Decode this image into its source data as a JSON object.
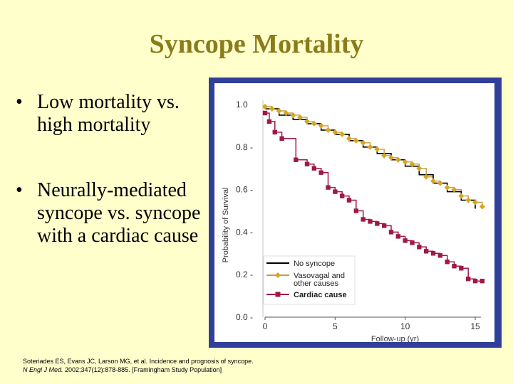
{
  "slide": {
    "title": "Syncope Mortality",
    "bullets": [
      "Low mortality vs. high mortality",
      "Neurally-mediated syncope vs. syncope with a cardiac cause"
    ],
    "bullet_symbol": "•"
  },
  "citation": {
    "line1": "Soteriades ES, Evans JC, Larson MG, et al. Incidence and prognosis of syncope.",
    "journal": "N Engl J Med.",
    "line2_rest": " 2002;347(12):878-885. [Framingham Study Population]"
  },
  "colors": {
    "background": "#FFFFCC",
    "title": "#8B7B1A",
    "frame": "#2F3F9A",
    "no_syncope": "#000000",
    "vasovagal": "#D8A520",
    "vasovagal_step": "#BDA040",
    "cardiac": "#A01848"
  },
  "chart_data": {
    "type": "line",
    "ylabel": "Probability of Survival",
    "xlabel": "Follow-up (yr)",
    "xlim": [
      0,
      15
    ],
    "ylim": [
      0,
      1
    ],
    "x_ticks": [
      "0",
      "5",
      "10",
      "15"
    ],
    "y_ticks": [
      "0.0 -",
      "0.2 -",
      "0.4 -",
      "0.6 -",
      "0.8 -",
      "1.0"
    ],
    "legend_position": "lower-left",
    "series": [
      {
        "name": "No syncope",
        "color": "#000000",
        "points": [
          [
            0,
            0.98
          ],
          [
            1,
            0.95
          ],
          [
            2,
            0.93
          ],
          [
            3,
            0.91
          ],
          [
            4,
            0.88
          ],
          [
            5,
            0.86
          ],
          [
            6,
            0.83
          ],
          [
            7,
            0.8
          ],
          [
            8,
            0.77
          ],
          [
            9,
            0.74
          ],
          [
            10,
            0.71
          ],
          [
            11,
            0.67
          ],
          [
            12,
            0.63
          ],
          [
            13,
            0.59
          ],
          [
            14,
            0.55
          ],
          [
            15,
            0.51
          ]
        ]
      },
      {
        "name": "Vasovagal and other causes",
        "color": "#D8A520",
        "points": [
          [
            0,
            0.99
          ],
          [
            0.5,
            0.98
          ],
          [
            1,
            0.97
          ],
          [
            1.5,
            0.96
          ],
          [
            2,
            0.95
          ],
          [
            2.5,
            0.94
          ],
          [
            3,
            0.92
          ],
          [
            3.5,
            0.91
          ],
          [
            4,
            0.9
          ],
          [
            4.5,
            0.88
          ],
          [
            5,
            0.87
          ],
          [
            5.5,
            0.86
          ],
          [
            6,
            0.84
          ],
          [
            6.5,
            0.83
          ],
          [
            7,
            0.82
          ],
          [
            7.5,
            0.8
          ],
          [
            8,
            0.79
          ],
          [
            8.5,
            0.76
          ],
          [
            9,
            0.75
          ],
          [
            9.5,
            0.74
          ],
          [
            10,
            0.73
          ],
          [
            10.5,
            0.72
          ],
          [
            11,
            0.7
          ],
          [
            11.5,
            0.66
          ],
          [
            12,
            0.64
          ],
          [
            12.5,
            0.63
          ],
          [
            13,
            0.61
          ],
          [
            13.5,
            0.6
          ],
          [
            14,
            0.57
          ],
          [
            14.5,
            0.55
          ],
          [
            15,
            0.54
          ],
          [
            15.5,
            0.52
          ]
        ]
      },
      {
        "name": "Cardiac cause",
        "color": "#A01848",
        "points": [
          [
            0,
            0.96
          ],
          [
            0.3,
            0.92
          ],
          [
            0.7,
            0.87
          ],
          [
            1.2,
            0.84
          ],
          [
            2.2,
            0.74
          ],
          [
            3,
            0.72
          ],
          [
            3.5,
            0.7
          ],
          [
            4,
            0.68
          ],
          [
            4.5,
            0.61
          ],
          [
            5,
            0.59
          ],
          [
            5.5,
            0.57
          ],
          [
            6,
            0.55
          ],
          [
            6.5,
            0.5
          ],
          [
            7,
            0.46
          ],
          [
            7.5,
            0.45
          ],
          [
            8,
            0.44
          ],
          [
            8.5,
            0.43
          ],
          [
            9,
            0.4
          ],
          [
            9.5,
            0.38
          ],
          [
            10,
            0.36
          ],
          [
            10.5,
            0.35
          ],
          [
            11,
            0.33
          ],
          [
            11.5,
            0.31
          ],
          [
            12,
            0.3
          ],
          [
            12.5,
            0.29
          ],
          [
            13,
            0.26
          ],
          [
            13.5,
            0.24
          ],
          [
            14,
            0.23
          ],
          [
            14.5,
            0.18
          ],
          [
            15,
            0.17
          ],
          [
            15.5,
            0.17
          ]
        ]
      }
    ],
    "legend": [
      {
        "label_lines": [
          "No syncope"
        ],
        "series": 0
      },
      {
        "label_lines": [
          "Vasovagal and",
          "other causes"
        ],
        "series": 1
      },
      {
        "label_lines": [
          "Cardiac cause"
        ],
        "series": 2
      }
    ]
  }
}
